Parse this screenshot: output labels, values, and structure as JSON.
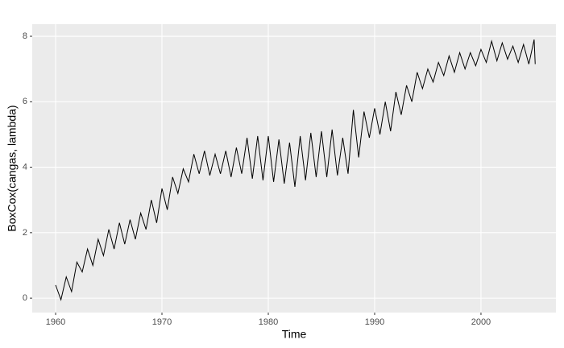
{
  "chart_data": {
    "type": "line",
    "xlabel": "Time",
    "ylabel": "BoxCox(cangas, lambda)",
    "x": [
      1960,
      1960.5,
      1961,
      1961.5,
      1962,
      1962.5,
      1963,
      1963.5,
      1964,
      1964.5,
      1965,
      1965.5,
      1966,
      1966.5,
      1967,
      1967.5,
      1968,
      1968.5,
      1969,
      1969.5,
      1970,
      1970.5,
      1971,
      1971.5,
      1972,
      1972.5,
      1973,
      1973.5,
      1974,
      1974.5,
      1975,
      1975.5,
      1976,
      1976.5,
      1977,
      1977.5,
      1978,
      1978.5,
      1979,
      1979.5,
      1980,
      1980.5,
      1981,
      1981.5,
      1982,
      1982.5,
      1983,
      1983.5,
      1984,
      1984.5,
      1985,
      1985.5,
      1986,
      1986.5,
      1987,
      1987.5,
      1988,
      1988.5,
      1989,
      1989.5,
      1990,
      1990.5,
      1991,
      1991.5,
      1992,
      1992.5,
      1993,
      1993.5,
      1994,
      1994.5,
      1995,
      1995.5,
      1996,
      1996.5,
      1997,
      1997.5,
      1998,
      1998.5,
      1999,
      1999.5,
      2000,
      2000.5,
      2001,
      2001.5,
      2002,
      2002.5,
      2003,
      2003.5,
      2004,
      2004.5,
      2005,
      2005.1
    ],
    "values": [
      0.4,
      -0.05,
      0.65,
      0.2,
      1.1,
      0.8,
      1.5,
      1.0,
      1.8,
      1.3,
      2.1,
      1.5,
      2.3,
      1.65,
      2.4,
      1.8,
      2.6,
      2.1,
      3.0,
      2.3,
      3.35,
      2.7,
      3.7,
      3.2,
      3.95,
      3.55,
      4.4,
      3.8,
      4.5,
      3.75,
      4.4,
      3.8,
      4.5,
      3.7,
      4.6,
      3.8,
      4.9,
      3.65,
      4.95,
      3.6,
      4.95,
      3.55,
      4.85,
      3.5,
      4.75,
      3.4,
      4.95,
      3.6,
      5.05,
      3.7,
      5.1,
      3.7,
      5.15,
      3.75,
      4.9,
      3.8,
      5.75,
      4.3,
      5.7,
      4.9,
      5.8,
      5.0,
      6.0,
      5.1,
      6.3,
      5.6,
      6.5,
      6.0,
      6.9,
      6.4,
      7.0,
      6.6,
      7.2,
      6.8,
      7.4,
      6.9,
      7.5,
      7.0,
      7.5,
      7.1,
      7.6,
      7.2,
      7.85,
      7.25,
      7.8,
      7.3,
      7.7,
      7.2,
      7.75,
      7.15,
      7.9,
      7.15
    ],
    "color": "#000000",
    "xlim": [
      1957.8,
      2007.05
    ],
    "ylim": [
      -0.44,
      8.37
    ],
    "xticks": [
      1960,
      1970,
      1980,
      1990,
      2000
    ],
    "yticks": [
      0,
      2,
      4,
      6,
      8
    ],
    "grid": true
  }
}
